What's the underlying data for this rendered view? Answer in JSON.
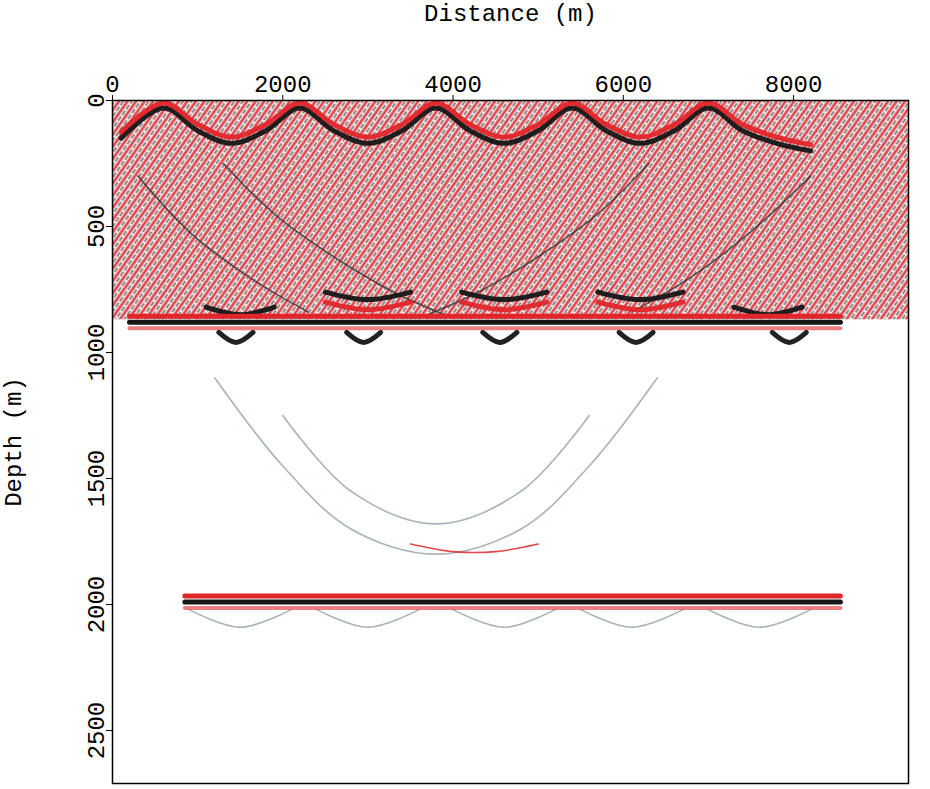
{
  "chart_data": {
    "type": "seismic",
    "xlabel": "Distance (m)",
    "ylabel": "Depth (m)",
    "xlim": [
      0,
      9350
    ],
    "xticks": [
      0,
      2000,
      4000,
      6000,
      8000
    ],
    "ylim": [
      0,
      2710
    ],
    "yticks": [
      0,
      500,
      1000,
      1500,
      2000,
      2500
    ],
    "zone": {
      "x": [
        0,
        9350
      ],
      "depth": [
        0,
        870
      ],
      "colors": [
        "#d9232b",
        "#1c1c1c"
      ]
    },
    "reflectors": [
      {
        "depth": 880,
        "x": [
          200,
          8550
        ],
        "colors": [
          "#e0262b",
          "#161616"
        ]
      },
      {
        "depth": 1990,
        "x": [
          850,
          8550
        ],
        "colors": [
          "#e0262b",
          "#161616"
        ]
      }
    ],
    "events": [
      {
        "color": "#161616",
        "line_style": "thick",
        "x": [
          100,
          600,
          1000,
          1400,
          1800,
          2200,
          2600,
          3000,
          3400,
          3800,
          4200,
          4600,
          5000,
          5400,
          5800,
          6200,
          6600,
          7000,
          7400,
          7800,
          8200
        ],
        "depth": [
          150,
          30,
          120,
          170,
          120,
          30,
          120,
          170,
          120,
          30,
          120,
          170,
          120,
          30,
          120,
          170,
          120,
          30,
          120,
          170,
          200
        ]
      },
      {
        "color": "#e0262b",
        "line_style": "thick",
        "x": [
          100,
          600,
          1000,
          1400,
          1800,
          2200,
          2600,
          3000,
          3400,
          3800,
          4200,
          4600,
          5000,
          5400,
          5800,
          6200,
          6600,
          7000,
          7400,
          7800,
          8200
        ],
        "depth": [
          125,
          10,
          95,
          145,
          95,
          10,
          95,
          145,
          95,
          10,
          95,
          145,
          95,
          10,
          95,
          145,
          95,
          10,
          95,
          145,
          175
        ]
      },
      {
        "color": "#3a3a3a",
        "line_style": "thin",
        "x": [
          1300,
          1900,
          2600,
          3300,
          3900
        ],
        "depth": [
          250,
          450,
          620,
          760,
          850
        ]
      },
      {
        "color": "#3a3a3a",
        "line_style": "thin",
        "x": [
          6300,
          5700,
          5000,
          4300,
          3700
        ],
        "depth": [
          250,
          450,
          620,
          760,
          850
        ]
      },
      {
        "color": "#3a3a3a",
        "line_style": "thin",
        "x": [
          300,
          900,
          1600,
          2300
        ],
        "depth": [
          300,
          520,
          700,
          840
        ]
      },
      {
        "color": "#3a3a3a",
        "line_style": "thin",
        "x": [
          8200,
          7500,
          6800,
          6100
        ],
        "depth": [
          300,
          520,
          700,
          840
        ]
      },
      {
        "color": "#161616",
        "line_style": "thick",
        "x": [
          1100,
          1500,
          1900
        ],
        "depth": [
          820,
          850,
          820
        ]
      },
      {
        "color": "#161616",
        "line_style": "thick",
        "x": [
          2500,
          3000,
          3500
        ],
        "depth": [
          760,
          790,
          760
        ]
      },
      {
        "color": "#161616",
        "line_style": "thick",
        "x": [
          4100,
          4600,
          5100
        ],
        "depth": [
          760,
          790,
          760
        ]
      },
      {
        "color": "#161616",
        "line_style": "thick",
        "x": [
          5700,
          6200,
          6700
        ],
        "depth": [
          760,
          790,
          760
        ]
      },
      {
        "color": "#161616",
        "line_style": "thick",
        "x": [
          7300,
          7700,
          8100
        ],
        "depth": [
          820,
          850,
          820
        ]
      },
      {
        "color": "#e0262b",
        "line_style": "thick",
        "x": [
          2500,
          3000,
          3500
        ],
        "depth": [
          800,
          830,
          800
        ]
      },
      {
        "color": "#e0262b",
        "line_style": "thick",
        "x": [
          4100,
          4600,
          5100
        ],
        "depth": [
          800,
          830,
          800
        ]
      },
      {
        "color": "#e0262b",
        "line_style": "thick",
        "x": [
          5700,
          6200,
          6700
        ],
        "depth": [
          800,
          830,
          800
        ]
      },
      {
        "color": "#161616",
        "line_style": "thick",
        "x": [
          1250,
          1450,
          1650
        ],
        "depth": [
          920,
          960,
          920
        ]
      },
      {
        "color": "#161616",
        "line_style": "thick",
        "x": [
          2750,
          2950,
          3150
        ],
        "depth": [
          920,
          960,
          920
        ]
      },
      {
        "color": "#161616",
        "line_style": "thick",
        "x": [
          4350,
          4550,
          4750
        ],
        "depth": [
          920,
          960,
          920
        ]
      },
      {
        "color": "#161616",
        "line_style": "thick",
        "x": [
          5950,
          6150,
          6350
        ],
        "depth": [
          920,
          960,
          920
        ]
      },
      {
        "color": "#161616",
        "line_style": "thick",
        "x": [
          7750,
          7950,
          8150
        ],
        "depth": [
          920,
          960,
          920
        ]
      },
      {
        "color": "#9aa6aa",
        "line_style": "thin",
        "x": [
          1200,
          2000,
          2800,
          3800,
          4800,
          5600,
          6400
        ],
        "depth": [
          1100,
          1450,
          1700,
          1800,
          1700,
          1450,
          1100
        ]
      },
      {
        "color": "#9aa6aa",
        "line_style": "thin",
        "x": [
          2000,
          2800,
          3800,
          4800,
          5600
        ],
        "depth": [
          1250,
          1550,
          1680,
          1550,
          1250
        ]
      },
      {
        "color": "#e0262b",
        "line_style": "thin",
        "x": [
          3500,
          4000,
          4500,
          5000
        ],
        "depth": [
          1760,
          1790,
          1790,
          1760
        ]
      },
      {
        "color": "#9aa6aa",
        "line_style": "thin",
        "x": [
          900,
          1500,
          2100
        ],
        "depth": [
          2020,
          2090,
          2020
        ]
      },
      {
        "color": "#9aa6aa",
        "line_style": "thin",
        "x": [
          2400,
          3000,
          3600
        ],
        "depth": [
          2020,
          2090,
          2020
        ]
      },
      {
        "color": "#9aa6aa",
        "line_style": "thin",
        "x": [
          4000,
          4600,
          5200
        ],
        "depth": [
          2020,
          2090,
          2020
        ]
      },
      {
        "color": "#9aa6aa",
        "line_style": "thin",
        "x": [
          5500,
          6100,
          6700
        ],
        "depth": [
          2020,
          2090,
          2020
        ]
      },
      {
        "color": "#9aa6aa",
        "line_style": "thin",
        "x": [
          7000,
          7600,
          8200
        ],
        "depth": [
          2020,
          2090,
          2020
        ]
      }
    ]
  }
}
